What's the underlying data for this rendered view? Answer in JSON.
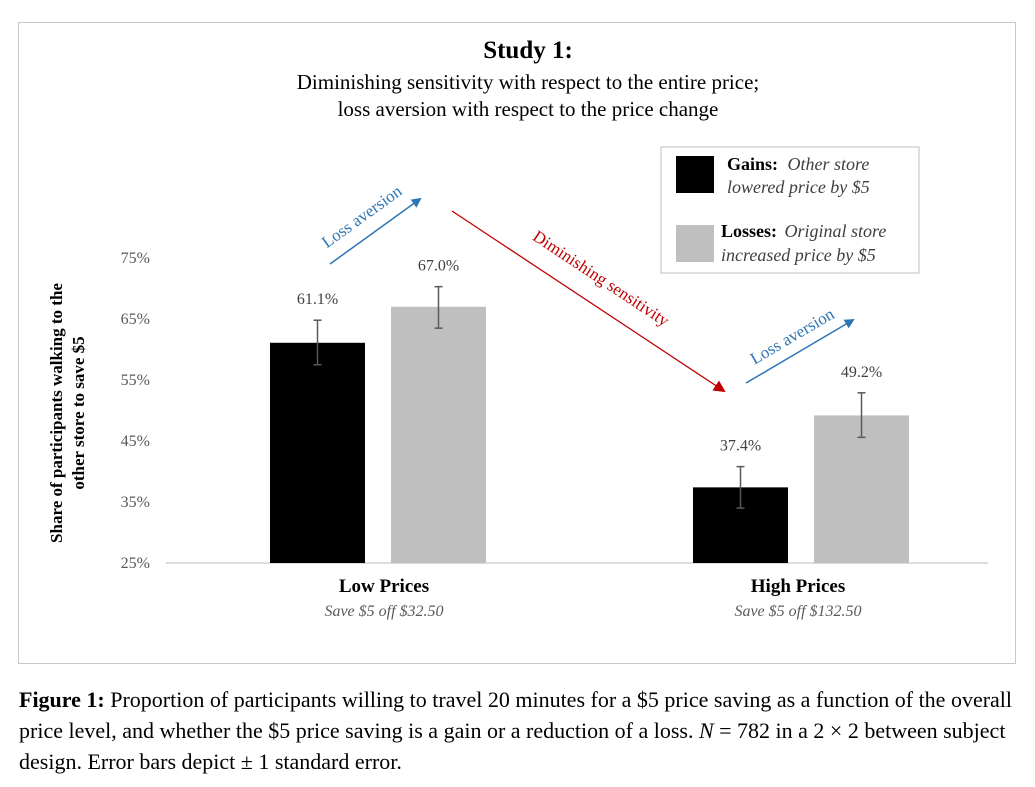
{
  "chart_data": {
    "type": "bar",
    "title": "Study 1:",
    "subtitle_lines": [
      "Diminishing sensitivity with respect to the entire price;",
      "loss aversion with respect to the price change"
    ],
    "ylabel_lines": [
      "Share of participants walking to the",
      "other store to save $5"
    ],
    "ylim": [
      25,
      75
    ],
    "yticks": [
      "75%",
      "65%",
      "55%",
      "45%",
      "35%",
      "25%"
    ],
    "ytick_values": [
      75,
      65,
      55,
      45,
      35,
      25
    ],
    "categories": [
      "Low Prices",
      "High Prices"
    ],
    "category_sublabels": [
      "Save $5 off $32.50",
      "Save $5 off $132.50"
    ],
    "series": [
      {
        "name": "Gains:",
        "name_detail_lines": [
          "Other store",
          "lowered price by $5"
        ],
        "color": "#000000",
        "values": [
          61.1,
          37.4
        ],
        "labels": [
          "61.1%",
          "37.4%"
        ],
        "err_low": [
          57.5,
          34.0
        ],
        "err_high": [
          64.8,
          40.8
        ]
      },
      {
        "name": "Losses:",
        "name_detail_lines": [
          "Original store",
          "increased price by $5"
        ],
        "color": "#bfbfbf",
        "values": [
          67.0,
          49.2
        ],
        "labels": [
          "67.0%",
          "49.2%"
        ],
        "err_low": [
          63.5,
          45.6
        ],
        "err_high": [
          70.3,
          52.9
        ]
      }
    ],
    "annotations": {
      "loss_aversion": "Loss aversion",
      "diminishing": "Diminishing sensitivity",
      "blue": "#2e75b6",
      "red": "#c00000"
    },
    "legend_position": "top-right",
    "grid": false
  },
  "caption": {
    "label": "Figure 1:",
    "text_a": " Proportion of participants willing to travel 20 minutes for a $5 price saving as a function of the overall price level, and whether the $5 price saving is a gain or a reduction of a loss. ",
    "n_symbol": "N",
    "text_b": " = 782 in a 2 × 2 between subject design. Error bars depict ± 1 standard error."
  }
}
